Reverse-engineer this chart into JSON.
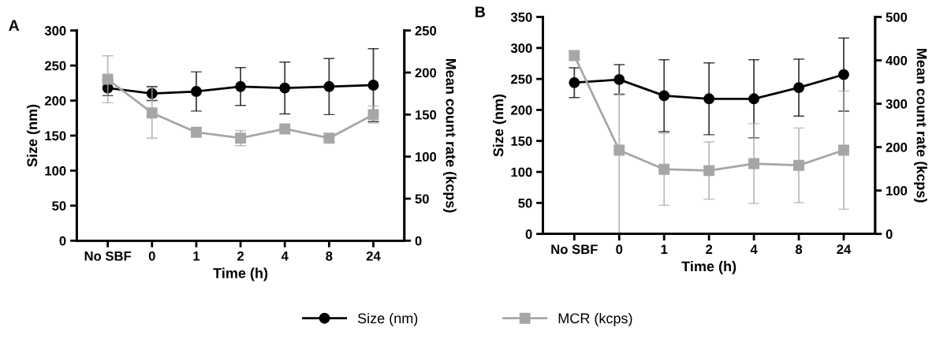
{
  "chart_data": [
    {
      "type": "line",
      "title": "A",
      "xlabel": "Time (h)",
      "ylabel": "Size (nm)",
      "y2label": "Mean count rate (kcps)",
      "categories": [
        "No SBF",
        "0",
        "1",
        "2",
        "4",
        "8",
        "24"
      ],
      "ylim": [
        0,
        300
      ],
      "yticks": [
        0,
        50,
        100,
        150,
        200,
        250,
        300
      ],
      "y2lim": [
        0,
        250
      ],
      "y2ticks": [
        0,
        50,
        100,
        150,
        200,
        250
      ],
      "grid": false,
      "legend": "bottom",
      "series": [
        {
          "name": "Size (nm)",
          "color": "#000000",
          "marker": "circle",
          "values": [
            218,
            210,
            213,
            220,
            218,
            220,
            222
          ],
          "errors": [
            11,
            10,
            28,
            27,
            37,
            40,
            52
          ]
        },
        {
          "name": "MCR (kcps)",
          "color": "#a6a6a6",
          "marker": "square",
          "axis": "y2",
          "values": [
            192,
            152,
            129,
            122,
            133,
            122,
            150
          ],
          "errors": [
            28,
            30,
            null,
            9,
            null,
            null,
            10
          ]
        }
      ]
    },
    {
      "type": "line",
      "title": "B",
      "xlabel": "Time (h)",
      "ylabel": "Size (nm)",
      "y2label": "Mean count rate (kcps)",
      "categories": [
        "No SBF",
        "0",
        "1",
        "2",
        "4",
        "8",
        "24"
      ],
      "ylim": [
        0,
        350
      ],
      "yticks": [
        0,
        50,
        100,
        150,
        200,
        250,
        300,
        350
      ],
      "y2lim": [
        0,
        500
      ],
      "y2ticks": [
        0,
        100,
        200,
        300,
        400,
        500
      ],
      "grid": false,
      "series": [
        {
          "color": "#000000",
          "marker": "circle",
          "values": [
            244,
            249,
            223,
            218,
            218,
            236,
            257
          ],
          "errors": [
            24,
            24,
            58,
            58,
            63,
            46,
            59
          ]
        },
        {
          "color": "#a6a6a6",
          "marker": "square",
          "axis": "y2",
          "values": [
            411,
            193,
            149,
            146,
            162,
            158,
            193
          ],
          "errors": [
            10,
            [
              0,
              323
            ],
            83,
            66,
            92,
            86,
            136
          ]
        }
      ]
    }
  ]
}
